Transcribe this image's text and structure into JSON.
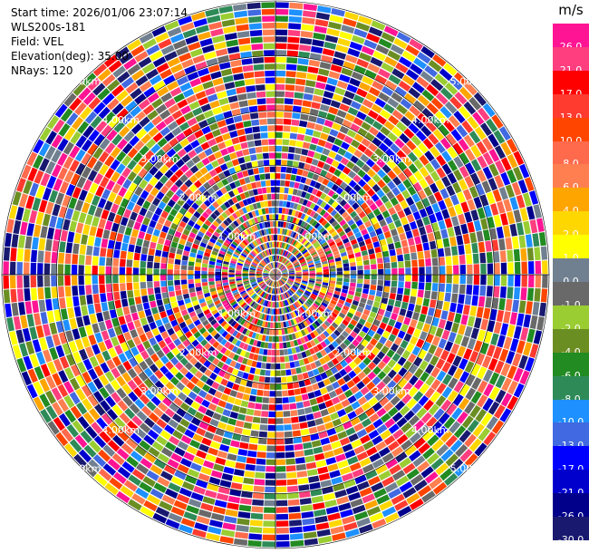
{
  "header": {
    "start_time": "Start time: 2026/01/06 23:07:14",
    "instrument": "WLS200s-181",
    "field": "Field: VEL",
    "elevation": "Elevation(deg): 35.00",
    "nrays": "NRays: 120"
  },
  "plot": {
    "rays": 120,
    "range_rings_km": [
      "1.00km",
      "2.00km",
      "3.00km",
      "4.00km",
      "5.00km"
    ],
    "background": "#ffffff",
    "grid_color": "#000000",
    "label_color": "#ffffff"
  },
  "colorbar": {
    "unit": "m/s",
    "bins": [
      {
        "label": "26.0",
        "color": "#ff1493"
      },
      {
        "label": "21.0",
        "color": "#ff3e7f"
      },
      {
        "label": "17.0",
        "color": "#ff0000"
      },
      {
        "label": "13.0",
        "color": "#ff3b30"
      },
      {
        "label": "10.0",
        "color": "#ff4500"
      },
      {
        "label": "8.0",
        "color": "#ff6a4d"
      },
      {
        "label": "6.0",
        "color": "#ff7f50"
      },
      {
        "label": "4.0",
        "color": "#ffa500"
      },
      {
        "label": "2.0",
        "color": "#ffd700"
      },
      {
        "label": "1.0",
        "color": "#ffff00"
      },
      {
        "label": "0.0",
        "color": "#708090"
      },
      {
        "label": "-1.0",
        "color": "#696969"
      },
      {
        "label": "-2.0",
        "color": "#9acd32"
      },
      {
        "label": "-4.0",
        "color": "#6b8e23"
      },
      {
        "label": "-6.0",
        "color": "#228b22"
      },
      {
        "label": "-8.0",
        "color": "#2e8b57"
      },
      {
        "label": "-10.0",
        "color": "#1e90ff"
      },
      {
        "label": "-13.0",
        "color": "#4169e1"
      },
      {
        "label": "-17.0",
        "color": "#0000ff"
      },
      {
        "label": "-21.0",
        "color": "#0000cd"
      },
      {
        "label": "-26.0",
        "color": "#00008b"
      },
      {
        "label": "-30.0",
        "color": "#191970"
      }
    ]
  }
}
